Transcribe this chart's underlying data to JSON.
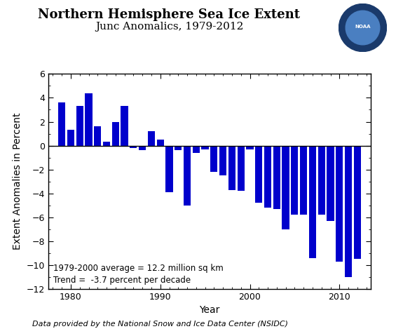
{
  "title_line1": "Northern Hemisphere Sea Ice Extent",
  "title_line2": "Junc Anomalics, 1979-2012",
  "xlabel": "Year",
  "ylabel": "Extent Anomalies in Percent",
  "annotation1": "1979-2000 average = 12.2 million sq km",
  "annotation2": "Trend =  -3.7 percent per decade",
  "footnote": "Data provided by the National Snow and Ice Data Center (NSIDC)",
  "bar_color": "#0000CC",
  "ylim": [
    -12,
    6
  ],
  "yticks": [
    -12,
    -10,
    -8,
    -6,
    -4,
    -2,
    0,
    2,
    4,
    6
  ],
  "xticks": [
    1980,
    1990,
    2000,
    2010
  ],
  "years": [
    1979,
    1980,
    1981,
    1982,
    1983,
    1984,
    1985,
    1986,
    1987,
    1988,
    1989,
    1990,
    1991,
    1992,
    1993,
    1994,
    1995,
    1996,
    1997,
    1998,
    1999,
    2000,
    2001,
    2002,
    2003,
    2004,
    2005,
    2006,
    2007,
    2008,
    2009,
    2010,
    2011,
    2012
  ],
  "values": [
    3.6,
    1.3,
    3.3,
    4.4,
    1.6,
    0.3,
    2.0,
    3.3,
    -0.2,
    -0.4,
    1.2,
    0.5,
    -3.9,
    -0.4,
    -5.0,
    -0.6,
    -0.3,
    -2.2,
    -2.5,
    -3.7,
    -3.8,
    -0.3,
    -4.8,
    -5.2,
    -5.3,
    -7.0,
    -5.8,
    -5.8,
    -9.4,
    -5.8,
    -6.3,
    -9.7,
    -11.0,
    -9.5
  ],
  "background_color": "#ffffff",
  "title_fontsize": 13,
  "subtitle_fontsize": 11,
  "axis_label_fontsize": 10,
  "tick_fontsize": 9,
  "annotation_fontsize": 8.5,
  "footnote_fontsize": 8
}
